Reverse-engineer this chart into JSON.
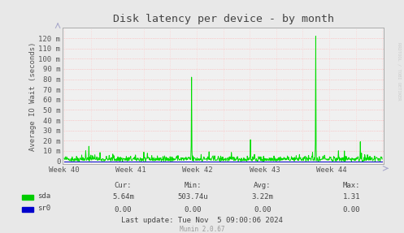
{
  "title": "Disk latency per device - by month",
  "ylabel": "Average IO Wait (seconds)",
  "bg_color": "#e8e8e8",
  "plot_bg_color": "#f0f0f0",
  "grid_color_h": "#ffaaaa",
  "grid_color_v": "#ffcccc",
  "line_color_sda": "#00dd00",
  "line_color_sr0": "#0000cc",
  "ytick_labels": [
    "0",
    "10 m",
    "20 m",
    "30 m",
    "40 m",
    "50 m",
    "60 m",
    "70 m",
    "80 m",
    "90 m",
    "100 m",
    "110 m",
    "120 m"
  ],
  "ytick_values": [
    0,
    0.01,
    0.02,
    0.03,
    0.04,
    0.05,
    0.06,
    0.07,
    0.08,
    0.09,
    0.1,
    0.11,
    0.12
  ],
  "xtick_labels": [
    "Week 40",
    "Week 41",
    "Week 42",
    "Week 43",
    "Week 44"
  ],
  "legend_items": [
    {
      "label": "sda",
      "color": "#00cc00"
    },
    {
      "label": "sr0",
      "color": "#0000cc"
    }
  ],
  "stats_header": [
    "Cur:",
    "Min:",
    "Avg:",
    "Max:"
  ],
  "stats_sda": [
    "5.64m",
    "503.74u",
    "3.22m",
    "1.31"
  ],
  "stats_sr0": [
    "0.00",
    "0.00",
    "0.00",
    "0.00"
  ],
  "last_update": "Last update: Tue Nov  5 09:00:06 2024",
  "munin_version": "Munin 2.0.67",
  "watermark": "RRDTOOL / TOBI OETIKER",
  "title_fontsize": 9.5,
  "axis_fontsize": 6.5,
  "tick_fontsize": 6.5,
  "stats_fontsize": 6.5,
  "ymax": 0.13,
  "ymin": -0.003
}
